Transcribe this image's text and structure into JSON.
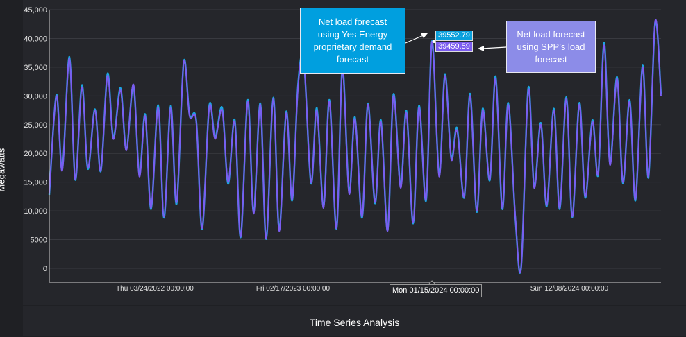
{
  "footer": {
    "title": "Time Series Analysis"
  },
  "annotations": {
    "yes_callout": "Net load forecast using Yes Energy proprietary demand forecast",
    "spp_callout": "Net load forecast using SPP’s load forecast",
    "yes_value": "39552.79",
    "spp_value": "39459.59",
    "crosshair_label": "Mon 01/15/2024 00:00:00",
    "yes_color": "#009fdf",
    "spp_color": "#8c8ce8"
  },
  "chart_data": {
    "type": "line",
    "ylabel": "Megawatts",
    "xlabel": "",
    "ylim": [
      0,
      45000
    ],
    "xlim": [
      "2021-07-15",
      "2025-07-15"
    ],
    "grid": true,
    "yticks": [
      0,
      5000,
      10000,
      15000,
      20000,
      25000,
      30000,
      35000,
      40000,
      45000
    ],
    "ytick_labels": [
      "0",
      "5000",
      "10,000",
      "15,000",
      "20,000",
      "25,000",
      "30,000",
      "35,000",
      "40,000",
      "45,000"
    ],
    "xticks": [
      "2022-03-24",
      "2023-02-17",
      "2024-12-08"
    ],
    "xtick_labels": [
      "Thu 03/24/2022 00:00:00",
      "Fri 02/17/2023 00:00:00",
      "Sun 12/08/2024 00:00:00"
    ],
    "crosshair_x": "2024-01-15",
    "series": [
      {
        "color": "#1aa6e0",
        "values": [
          12800,
          30200,
          17200,
          36800,
          15400,
          31900,
          17300,
          27700,
          16900,
          33900,
          22800,
          31400,
          20700,
          31800,
          16300,
          26800,
          10300,
          28400,
          8800,
          28300,
          11200,
          35900,
          26700,
          25700,
          6800,
          28300,
          22800,
          27900,
          14700,
          25800,
          5400,
          29300,
          9800,
          28700,
          5100,
          29700,
          6700,
          27300,
          11800,
          31900,
          36200,
          14800,
          27900,
          10700,
          29300,
          6900,
          34900,
          13300,
          26300,
          8800,
          28700,
          11300,
          25800,
          6600,
          30300,
          14300,
          27400,
          7800,
          28300,
          11800,
          39552.79,
          16300,
          33800,
          19300,
          24400,
          12300,
          30400,
          9800,
          27800,
          15300,
          33400,
          10300,
          28800,
          8800,
          200,
          31400,
          14200,
          25300,
          10800,
          27800,
          10300,
          29800,
          8900,
          28800,
          12300,
          25800,
          16300,
          39300,
          18300,
          33300,
          14800,
          29300,
          11800,
          35300,
          15800,
          42800,
          30300
        ]
      },
      {
        "color": "#7b5cf0",
        "values": [
          13000,
          30000,
          17000,
          36500,
          15500,
          31500,
          17500,
          27500,
          17000,
          33500,
          22500,
          31000,
          20500,
          32000,
          16000,
          26500,
          10500,
          28000,
          9000,
          28000,
          11500,
          35800,
          26500,
          25500,
          7000,
          28000,
          22500,
          27500,
          15000,
          25500,
          5500,
          29000,
          9500,
          28500,
          5200,
          29500,
          6500,
          27000,
          12000,
          31500,
          36000,
          15000,
          27500,
          10500,
          29000,
          7000,
          34500,
          13000,
          26000,
          9000,
          28500,
          11500,
          25500,
          6500,
          30000,
          14000,
          27000,
          8000,
          28000,
          12000,
          39459.59,
          16000,
          33500,
          19000,
          24000,
          12500,
          30000,
          10000,
          27500,
          15500,
          33000,
          10500,
          28500,
          9000,
          200,
          31000,
          14000,
          25000,
          11000,
          27500,
          10500,
          29500,
          9000,
          28500,
          12500,
          25500,
          16500,
          38800,
          18000,
          33000,
          15000,
          29000,
          12000,
          35000,
          16000,
          43000,
          30000
        ]
      }
    ]
  }
}
